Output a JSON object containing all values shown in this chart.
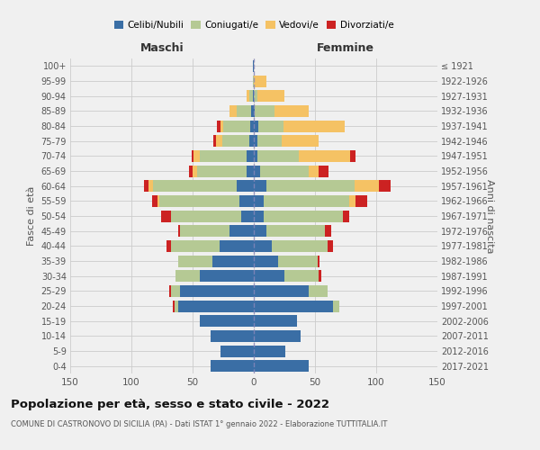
{
  "age_groups": [
    "0-4",
    "5-9",
    "10-14",
    "15-19",
    "20-24",
    "25-29",
    "30-34",
    "35-39",
    "40-44",
    "45-49",
    "50-54",
    "55-59",
    "60-64",
    "65-69",
    "70-74",
    "75-79",
    "80-84",
    "85-89",
    "90-94",
    "95-99",
    "100+"
  ],
  "birth_years": [
    "2017-2021",
    "2012-2016",
    "2007-2011",
    "2002-2006",
    "1997-2001",
    "1992-1996",
    "1987-1991",
    "1982-1986",
    "1977-1981",
    "1972-1976",
    "1967-1971",
    "1962-1966",
    "1957-1961",
    "1952-1956",
    "1947-1951",
    "1942-1946",
    "1937-1941",
    "1932-1936",
    "1927-1931",
    "1922-1926",
    "≤ 1921"
  ],
  "maschi": {
    "celibi": [
      35,
      27,
      35,
      44,
      62,
      60,
      44,
      34,
      28,
      20,
      10,
      12,
      14,
      6,
      6,
      4,
      3,
      2,
      1,
      0,
      1
    ],
    "coniugati": [
      0,
      0,
      0,
      0,
      3,
      8,
      20,
      28,
      40,
      40,
      58,
      65,
      68,
      40,
      38,
      22,
      22,
      12,
      3,
      1,
      0
    ],
    "vedovi": [
      0,
      0,
      0,
      0,
      0,
      0,
      0,
      0,
      0,
      0,
      0,
      2,
      4,
      4,
      5,
      5,
      2,
      6,
      2,
      0,
      0
    ],
    "divorziati": [
      0,
      0,
      0,
      0,
      1,
      1,
      0,
      0,
      3,
      2,
      8,
      4,
      4,
      3,
      2,
      2,
      3,
      0,
      0,
      0,
      0
    ]
  },
  "femmine": {
    "nubili": [
      45,
      26,
      38,
      35,
      65,
      45,
      25,
      20,
      15,
      10,
      8,
      8,
      10,
      5,
      3,
      3,
      4,
      1,
      0,
      0,
      0
    ],
    "coniugate": [
      0,
      0,
      0,
      0,
      5,
      15,
      28,
      32,
      45,
      48,
      65,
      70,
      72,
      40,
      34,
      20,
      20,
      16,
      3,
      0,
      0
    ],
    "vedove": [
      0,
      0,
      0,
      0,
      0,
      0,
      0,
      0,
      0,
      0,
      0,
      5,
      20,
      8,
      42,
      30,
      50,
      28,
      22,
      10,
      0
    ],
    "divorziate": [
      0,
      0,
      0,
      0,
      0,
      0,
      2,
      2,
      5,
      5,
      5,
      10,
      10,
      8,
      4,
      0,
      0,
      0,
      0,
      0,
      0
    ]
  },
  "colors": {
    "celibi": "#3a6ea5",
    "coniugati": "#b5c994",
    "vedovi": "#f5c264",
    "divorziati": "#cc2222"
  },
  "xlim": 150,
  "title": "Popolazione per età, sesso e stato civile - 2022",
  "subtitle": "COMUNE DI CASTRONOVO DI SICILIA (PA) - Dati ISTAT 1° gennaio 2022 - Elaborazione TUTTITALIA.IT",
  "ylabel_left": "Fasce di età",
  "ylabel_right": "Anni di nascita",
  "xlabel_left": "Maschi",
  "xlabel_right": "Femmine",
  "background_color": "#f0f0f0",
  "legend_labels": [
    "Celibi/Nubili",
    "Coniugati/e",
    "Vedovi/e",
    "Divorziati/e"
  ]
}
